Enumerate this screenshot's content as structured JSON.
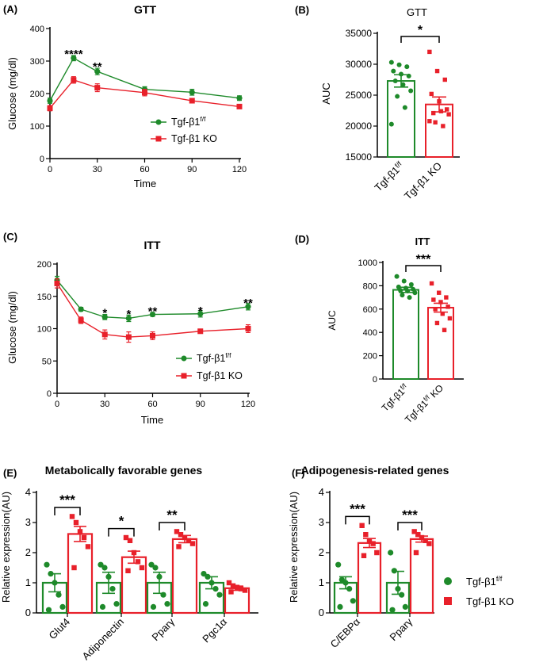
{
  "colors": {
    "wt": "#1e8a2a",
    "ko": "#e8202a",
    "axis": "#000000"
  },
  "legend_labels": {
    "wt_main": "Tgf-β1",
    "wt_sup": "f/f",
    "ko": "Tgf-β1 KO"
  },
  "chart_data": [
    {
      "id": "A",
      "type": "line",
      "panel_label": "(A)",
      "title": "GTT",
      "xlabel": "Time",
      "ylabel": "Glucose (mg/dl)",
      "xlim": [
        0,
        120
      ],
      "ylim": [
        0,
        400
      ],
      "xticks": [
        0,
        30,
        60,
        90,
        120
      ],
      "yticks": [
        0,
        100,
        200,
        300,
        400
      ],
      "series": [
        {
          "name": "Tgf-β1 f/f",
          "group": "wt",
          "x": [
            0,
            15,
            30,
            60,
            90,
            120
          ],
          "y": [
            178,
            309,
            268,
            213,
            204,
            186
          ],
          "err": [
            8,
            8,
            10,
            8,
            9,
            7
          ]
        },
        {
          "name": "Tgf-β1 KO",
          "group": "ko",
          "x": [
            0,
            15,
            30,
            60,
            90,
            120
          ],
          "y": [
            155,
            242,
            218,
            203,
            178,
            160
          ],
          "err": [
            8,
            10,
            12,
            10,
            6,
            6
          ]
        }
      ],
      "annotations": [
        {
          "x": 15,
          "y": 325,
          "text": "****"
        },
        {
          "x": 30,
          "y": 285,
          "text": "**"
        }
      ]
    },
    {
      "id": "B",
      "type": "bar",
      "panel_label": "(B)",
      "title": "GTT",
      "ylabel": "AUC",
      "ylim": [
        15000,
        35000
      ],
      "yticks": [
        15000,
        20000,
        25000,
        30000,
        35000
      ],
      "categories": [
        "Tgf-β1 f/f",
        "Tgf-β1 KO"
      ],
      "values": [
        27300,
        23500
      ],
      "errors": [
        1000,
        1200
      ],
      "points": [
        [
          30300,
          29900,
          29600,
          28900,
          28400,
          28100,
          27300,
          26700,
          25700,
          24800,
          23000,
          20300
        ],
        [
          32000,
          28900,
          27500,
          25200,
          24000,
          22700,
          22100,
          22400,
          21900,
          20600,
          20000,
          20800
        ]
      ],
      "significance": "*"
    },
    {
      "id": "C",
      "type": "line",
      "panel_label": "(C)",
      "title": "ITT",
      "xlabel": "Time",
      "ylabel": "Glucose (mg/dl)",
      "xlim": [
        0,
        120
      ],
      "ylim": [
        0,
        200
      ],
      "xticks": [
        0,
        30,
        60,
        90,
        120
      ],
      "yticks": [
        0,
        50,
        100,
        150,
        200
      ],
      "series": [
        {
          "name": "Tgf-β1 f/f",
          "group": "wt",
          "x": [
            0,
            15,
            30,
            45,
            60,
            90,
            120
          ],
          "y": [
            175,
            130,
            118,
            116,
            122,
            123,
            134
          ],
          "err": [
            6,
            3,
            4,
            5,
            3,
            5,
            5
          ]
        },
        {
          "name": "Tgf-β1 KO",
          "group": "ko",
          "x": [
            0,
            15,
            30,
            45,
            60,
            90,
            120
          ],
          "y": [
            170,
            113,
            91,
            87,
            89,
            96,
            100
          ],
          "err": [
            7,
            5,
            7,
            8,
            6,
            3,
            6
          ]
        }
      ],
      "annotations": [
        {
          "x": 30,
          "y": 126,
          "text": "*"
        },
        {
          "x": 45,
          "y": 124,
          "text": "*"
        },
        {
          "x": 60,
          "y": 128,
          "text": "**"
        },
        {
          "x": 90,
          "y": 129,
          "text": "*"
        },
        {
          "x": 120,
          "y": 141,
          "text": "**"
        }
      ]
    },
    {
      "id": "D",
      "type": "bar",
      "panel_label": "(D)",
      "title": "ITT",
      "ylabel": "AUC",
      "ylim": [
        0,
        1000
      ],
      "yticks": [
        0,
        200,
        400,
        600,
        800,
        1000
      ],
      "categories": [
        "Tgf-β1 f/f",
        "Tgf-β1 f/f KO"
      ],
      "values": [
        765,
        612
      ],
      "errors": [
        22,
        38
      ],
      "points": [
        [
          880,
          840,
          810,
          790,
          780,
          770,
          760,
          755,
          740,
          720,
          700
        ],
        [
          820,
          740,
          700,
          680,
          660,
          620,
          600,
          560,
          520,
          480,
          420
        ]
      ],
      "significance": "***"
    },
    {
      "id": "E",
      "type": "bar",
      "panel_label": "(E)",
      "title": "Metabolically favorable genes",
      "ylabel": "Relative expression(AU)",
      "ylim": [
        0,
        4
      ],
      "yticks": [
        0,
        1,
        2,
        3,
        4
      ],
      "categories": [
        "Glut4",
        "Adiponectin",
        "Pparγ",
        "Pgc1α"
      ],
      "series": [
        {
          "name": "Tgf-β1 f/f",
          "group": "wt",
          "values": [
            1.0,
            1.0,
            1.0,
            1.0
          ],
          "errors": [
            0.3,
            0.35,
            0.35,
            0.2
          ],
          "points": [
            [
              1.6,
              1.3,
              1.0,
              0.6,
              0.2,
              0.1
            ],
            [
              1.6,
              1.5,
              1.2,
              0.8,
              0.3,
              0.2
            ],
            [
              1.6,
              1.5,
              1.2,
              0.6,
              0.3,
              0.2
            ],
            [
              1.3,
              1.2,
              1.0,
              0.8,
              0.6,
              0.3
            ]
          ]
        },
        {
          "name": "Tgf-β1 KO",
          "group": "ko",
          "values": [
            2.62,
            1.85,
            2.45,
            0.82
          ],
          "errors": [
            0.25,
            0.2,
            0.12,
            0.07
          ],
          "points": [
            [
              3.2,
              3.0,
              2.7,
              2.5,
              2.2,
              1.5
            ],
            [
              2.5,
              2.4,
              2.0,
              1.7,
              1.5,
              1.4
            ],
            [
              2.7,
              2.6,
              2.5,
              2.4,
              2.3,
              2.2
            ],
            [
              1.0,
              0.9,
              0.85,
              0.8,
              0.75,
              0.7
            ]
          ]
        }
      ],
      "significance": [
        {
          "category": 0,
          "text": "***"
        },
        {
          "category": 1,
          "text": "*"
        },
        {
          "category": 2,
          "text": "**"
        }
      ]
    },
    {
      "id": "F",
      "type": "bar",
      "panel_label": "(F)",
      "title": "Adipogenesis-related genes",
      "ylabel": "Relative expression(AU)",
      "ylim": [
        0,
        4
      ],
      "yticks": [
        0,
        1,
        2,
        3,
        4
      ],
      "categories": [
        "C/EBPα",
        "Pparγ"
      ],
      "series": [
        {
          "name": "Tgf-β1 f/f",
          "group": "wt",
          "values": [
            1.0,
            1.0
          ],
          "errors": [
            0.2,
            0.38
          ],
          "points": [
            [
              1.6,
              1.1,
              1.0,
              0.8,
              0.4,
              0.2
            ],
            [
              2.0,
              1.4,
              0.8,
              0.6,
              0.2,
              0.1
            ]
          ]
        },
        {
          "name": "Tgf-β1 KO",
          "group": "ko",
          "values": [
            2.32,
            2.45
          ],
          "errors": [
            0.15,
            0.1
          ],
          "points": [
            [
              2.9,
              2.6,
              2.4,
              2.3,
              2.0,
              1.9
            ],
            [
              2.7,
              2.6,
              2.5,
              2.4,
              2.3,
              2.0
            ]
          ]
        }
      ],
      "significance": [
        {
          "category": 0,
          "text": "***"
        },
        {
          "category": 1,
          "text": "***"
        }
      ],
      "legend": [
        {
          "group": "wt",
          "label": "Tgf-β1 f/f"
        },
        {
          "group": "ko",
          "label": "Tgf-β1 KO"
        }
      ]
    }
  ]
}
